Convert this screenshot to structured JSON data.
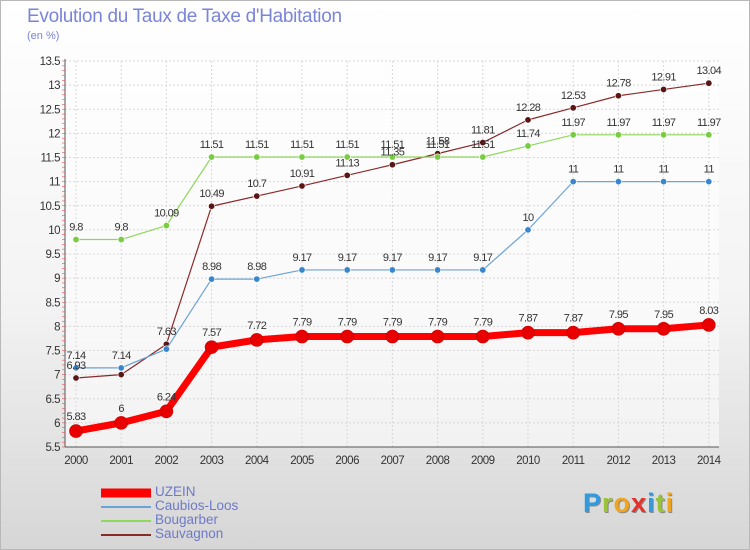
{
  "header": {
    "title": "Evolution du Taux de Taxe d'Habitation",
    "subtitle": "(en %)"
  },
  "logo": {
    "letters": [
      "P",
      "r",
      "o",
      "x",
      "i",
      "t",
      "i"
    ],
    "colors": [
      "#2f9be0",
      "#9ac23c",
      "#f0a51e",
      "#e5322d",
      "#2f9be0",
      "#9ac23c",
      "#f0a51e"
    ]
  },
  "chart_data": {
    "type": "line",
    "x": [
      "2000",
      "2001",
      "2002",
      "2003",
      "2004",
      "2005",
      "2006",
      "2007",
      "2008",
      "2009",
      "2010",
      "2011",
      "2012",
      "2013",
      "2014"
    ],
    "ylim": [
      5.5,
      13.5
    ],
    "yticks": [
      "5.5",
      "6",
      "6.5",
      "7",
      "7.5",
      "8",
      "8.5",
      "9",
      "9.5",
      "10",
      "10.5",
      "11",
      "11.5",
      "12",
      "12.5",
      "13",
      "13.5"
    ],
    "grid": true,
    "legend_position": "bottom-left",
    "series": [
      {
        "name": "Sauvagnon",
        "color": "#8b2a2a",
        "markerColor": "#5a1515",
        "width": 1.2,
        "marker": 3.2,
        "values": [
          6.93,
          7.0,
          7.63,
          10.49,
          10.7,
          10.91,
          11.13,
          11.35,
          11.58,
          11.81,
          12.28,
          12.53,
          12.78,
          12.91,
          13.04
        ],
        "labels": [
          "6.93",
          "",
          "7.63",
          "10.49",
          "10.7",
          "10.91",
          "11.13",
          "11.35",
          "11.58",
          "11.81",
          "12.28",
          "12.53",
          "12.78",
          "12.91",
          "13.04"
        ]
      },
      {
        "name": "Bougarber",
        "color": "#8fd85c",
        "markerColor": "#7acb44",
        "width": 1.2,
        "marker": 3.2,
        "values": [
          9.8,
          9.8,
          10.09,
          11.51,
          11.51,
          11.51,
          11.51,
          11.51,
          11.51,
          11.51,
          11.74,
          11.97,
          11.97,
          11.97,
          11.97
        ],
        "labels": [
          "9.8",
          "9.8",
          "10.09",
          "11.51",
          "11.51",
          "11.51",
          "11.51",
          "11.51",
          "11.51",
          "11.51",
          "11.74",
          "11.97",
          "11.97",
          "11.97",
          "11.97"
        ]
      },
      {
        "name": "Caubios-Loos",
        "color": "#6aa3d8",
        "markerColor": "#3a86cc",
        "width": 1.2,
        "marker": 3.2,
        "values": [
          7.14,
          7.14,
          7.53,
          8.98,
          8.98,
          9.17,
          9.17,
          9.17,
          9.17,
          9.17,
          10.0,
          11.0,
          11.0,
          11.0,
          11.0
        ],
        "labels": [
          "7.14",
          "7.14",
          "",
          "8.98",
          "8.98",
          "9.17",
          "9.17",
          "9.17",
          "9.17",
          "9.17",
          "10",
          "11",
          "11",
          "11",
          "11"
        ]
      },
      {
        "name": "UZEIN",
        "color": "#ff0000",
        "markerColor": "#e80000",
        "width": 7,
        "marker": 6.5,
        "values": [
          5.83,
          6.0,
          6.24,
          7.57,
          7.72,
          7.79,
          7.79,
          7.79,
          7.79,
          7.79,
          7.87,
          7.87,
          7.95,
          7.95,
          8.03
        ],
        "labels": [
          "5.83",
          "6",
          "6.24",
          "7.57",
          "7.72",
          "7.79",
          "7.79",
          "7.79",
          "7.79",
          "7.79",
          "7.87",
          "7.87",
          "7.95",
          "7.95",
          "8.03"
        ]
      }
    ]
  },
  "legend": {
    "items": [
      {
        "label": "UZEIN",
        "color": "#ff0000",
        "weight": "thick"
      },
      {
        "label": "Caubios-Loos",
        "color": "#6aa3d8",
        "weight": "thin"
      },
      {
        "label": "Bougarber",
        "color": "#8fd85c",
        "weight": "thin"
      },
      {
        "label": "Sauvagnon",
        "color": "#8b2a2a",
        "weight": "thin"
      }
    ]
  }
}
